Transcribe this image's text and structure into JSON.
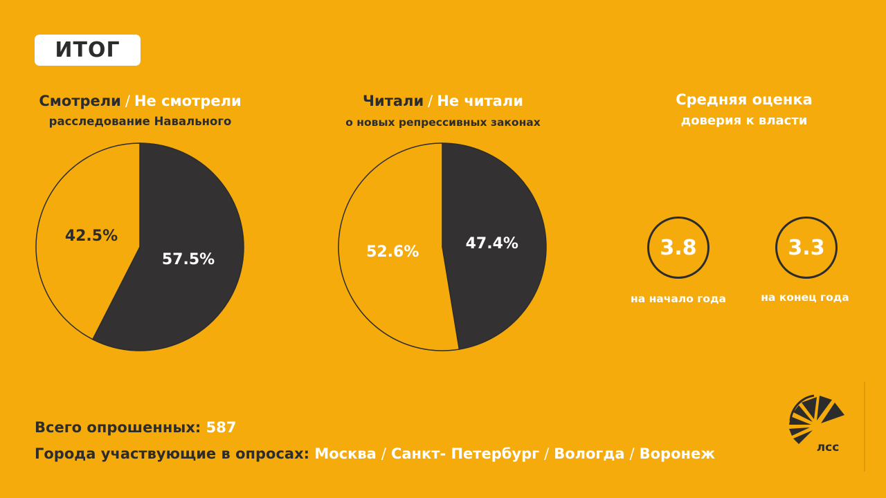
{
  "badge": "ИТОГ",
  "chart1": {
    "title_part1": "Смотрели",
    "separator": "/",
    "title_part2": "Не смотрели",
    "subtitle": "расследование Навального"
  },
  "chart2": {
    "title_part1": "Читали",
    "separator": "/",
    "title_part2": "Не читали",
    "subtitle": "о новых репрессивных законах"
  },
  "trust": {
    "title_line1": "Средняя оценка",
    "title_line2": "доверия к власти",
    "start_value": "3.8",
    "start_label": "на начало года",
    "end_value": "3.3",
    "end_label": "на конец года"
  },
  "chart_data": [
    {
      "type": "pie",
      "title": "Смотрели / Не смотрели",
      "subtitle": "расследование Навального",
      "slices": [
        {
          "label": "57.5%",
          "value": 57.5,
          "color": "#333132",
          "label_color": "#ffffff"
        },
        {
          "label": "42.5%",
          "value": 42.5,
          "color": "#f5ab0b",
          "label_color": "#2c2c2c"
        }
      ]
    },
    {
      "type": "pie",
      "title": "Читали / Не читали",
      "subtitle": "о новых репрессивных законах",
      "slices": [
        {
          "label": "47.4%",
          "value": 47.4,
          "color": "#333132",
          "label_color": "#ffffff"
        },
        {
          "label": "52.6%",
          "value": 52.6,
          "color": "#f5ab0b",
          "label_color": "#ffffff"
        }
      ]
    }
  ],
  "footer": {
    "total_label": "Всего опрошенных:",
    "total_value": "587",
    "cities_label": "Города участвующие в опросах:",
    "cities": [
      "Москва",
      "Санкт- Петербург",
      "Вологда",
      "Воронеж"
    ],
    "separator": "/"
  },
  "logo": {
    "text": "лсс",
    "icon": "pizza-slices-logo-icon"
  },
  "colors": {
    "background": "#f5ab0b",
    "dark": "#333132",
    "text": "#2c2c2c",
    "light": "#ffffff"
  }
}
